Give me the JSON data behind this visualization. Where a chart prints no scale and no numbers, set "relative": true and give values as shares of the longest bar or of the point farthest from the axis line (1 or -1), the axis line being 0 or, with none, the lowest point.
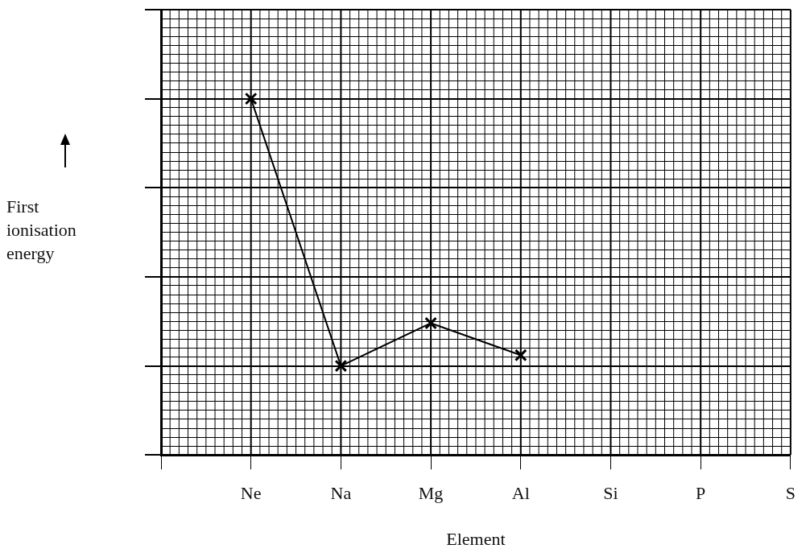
{
  "chart_data": {
    "type": "line",
    "xlabel": "Element",
    "ylabel": "First ionisation energy",
    "categories": [
      null,
      "Ne",
      "Na",
      "Mg",
      "Al",
      "Si",
      "P",
      "S"
    ],
    "series": [
      {
        "color": "#000000",
        "values": [
          null,
          1,
          0.25,
          0.37,
          0.28,
          null,
          null,
          null
        ]
      }
    ],
    "relative": true,
    "grid": true,
    "legend": false,
    "marker": "cross",
    "line_style": "solid"
  }
}
